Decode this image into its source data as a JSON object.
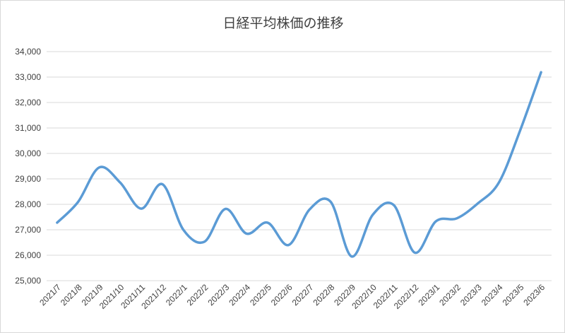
{
  "chart_data": {
    "type": "line",
    "title": "日経平均株価の推移",
    "xlabel": "",
    "ylabel": "",
    "ylim": [
      25000,
      34000
    ],
    "yticks": [
      25000,
      26000,
      27000,
      28000,
      29000,
      30000,
      31000,
      32000,
      33000,
      34000
    ],
    "ytick_labels": [
      "25,000",
      "26,000",
      "27,000",
      "28,000",
      "29,000",
      "30,000",
      "31,000",
      "32,000",
      "33,000",
      "34,000"
    ],
    "grid": true,
    "legend": "none",
    "smooth": true,
    "categories": [
      "2021/7",
      "2021/8",
      "2021/9",
      "2021/10",
      "2021/11",
      "2021/12",
      "2022/1",
      "2022/2",
      "2022/3",
      "2022/4",
      "2022/5",
      "2022/6",
      "2022/7",
      "2022/8",
      "2022/9",
      "2022/10",
      "2022/11",
      "2022/12",
      "2023/1",
      "2023/2",
      "2023/3",
      "2023/4",
      "2023/5",
      "2023/6"
    ],
    "series": [
      {
        "color": "#5b9bd5",
        "values": [
          27280,
          28100,
          29450,
          28850,
          27830,
          28790,
          27000,
          26530,
          27820,
          26850,
          27280,
          26400,
          27800,
          28100,
          25950,
          27590,
          27970,
          26100,
          27330,
          27450,
          28040,
          28860,
          30890,
          33190
        ]
      }
    ]
  }
}
